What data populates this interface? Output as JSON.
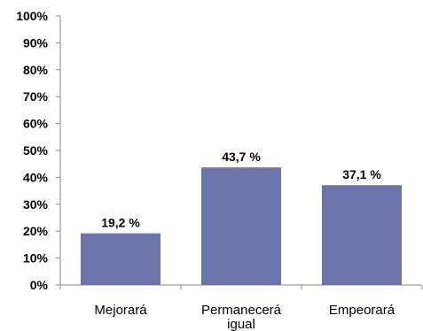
{
  "chart_data": {
    "type": "bar",
    "categories": [
      "Mejorará",
      "Permanecerá igual",
      "Empeorará"
    ],
    "category_lines": [
      [
        "Mejorará"
      ],
      [
        "Permanecerá",
        "igual"
      ],
      [
        "Empeorará"
      ]
    ],
    "values": [
      19.2,
      43.7,
      37.1
    ],
    "data_labels": [
      "19,2 %",
      "43,7 %",
      "37,1 %"
    ],
    "y_ticks": [
      "0%",
      "10%",
      "20%",
      "30%",
      "40%",
      "50%",
      "60%",
      "70%",
      "80%",
      "90%",
      "100%"
    ],
    "ylim": [
      0,
      100
    ],
    "grid": false,
    "bar_color": "#6b75ab",
    "axis_color": "#8a8a8a"
  }
}
